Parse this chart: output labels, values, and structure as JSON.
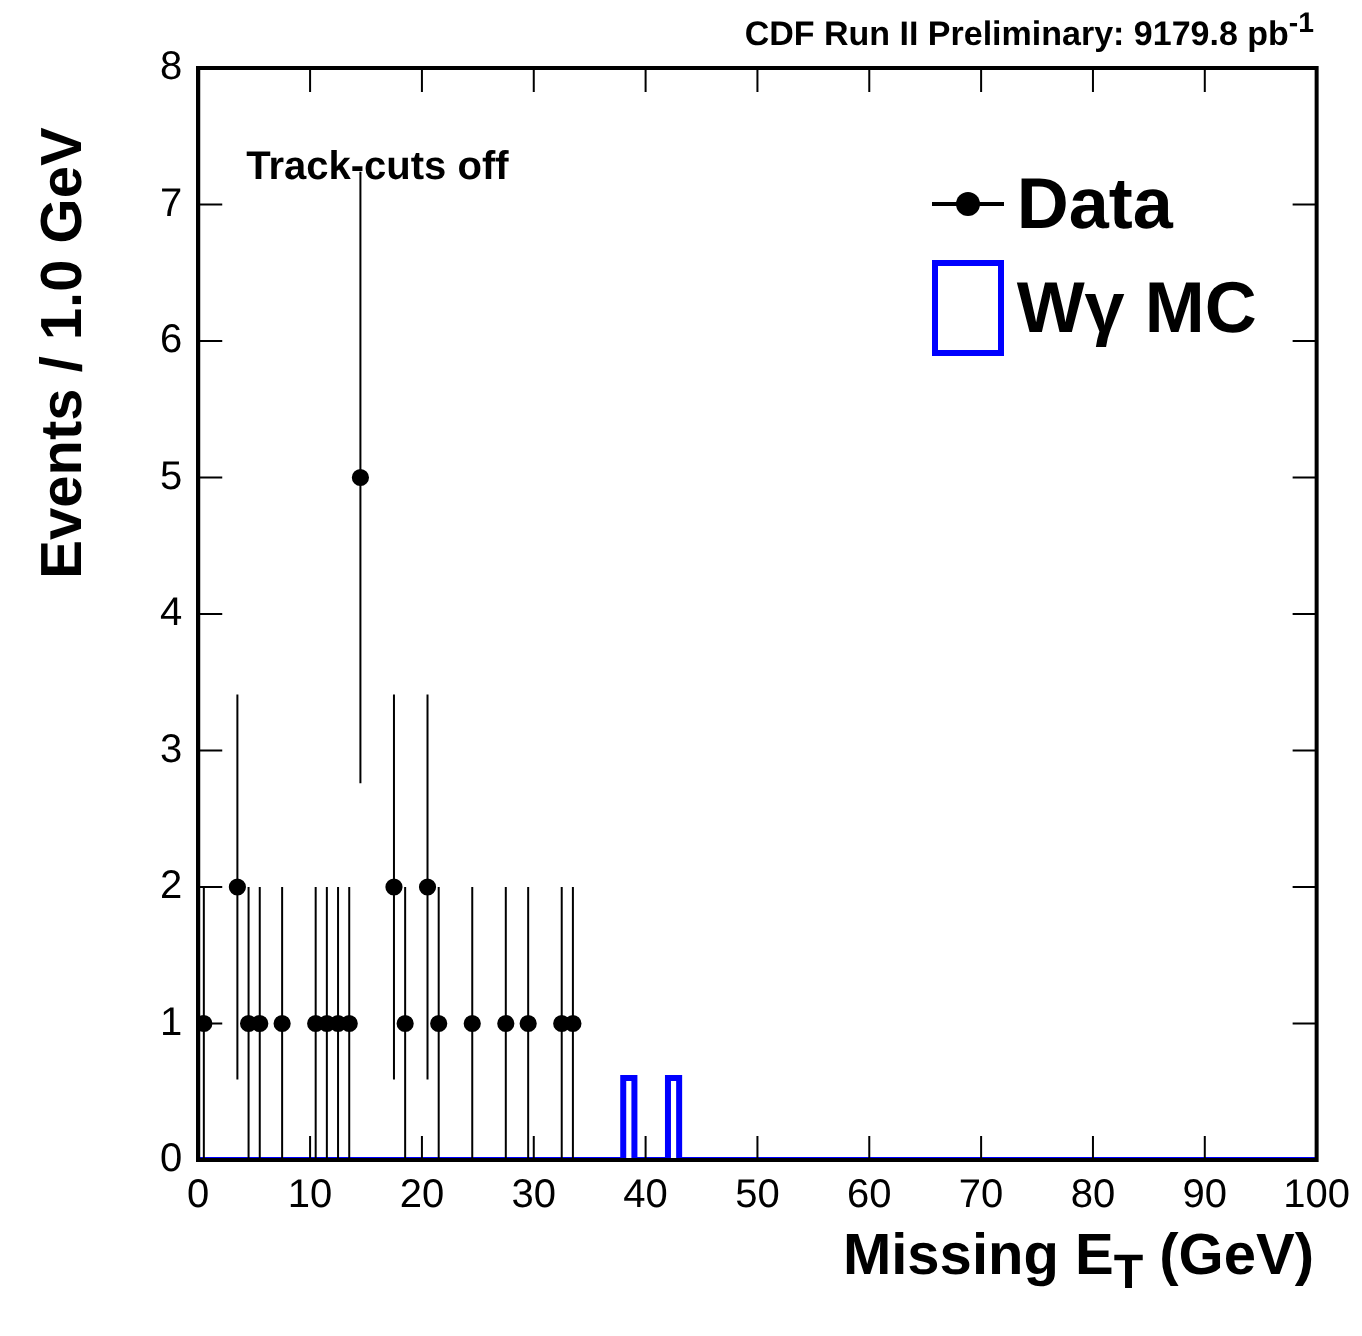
{
  "chart_data": {
    "type": "scatter",
    "title": "CDF Run II Preliminary:  9179.8 pb$^{-1}$",
    "xlabel": "Missing E$_{T}$ (GeV)",
    "ylabel": "Events / 1.0 GeV",
    "annotations": [
      "Track-cuts off"
    ],
    "series": [
      {
        "name": "Data",
        "color": "#000000",
        "x": [
          0.5,
          3.5,
          4.5,
          5.5,
          7.5,
          10.5,
          11.5,
          12.5,
          13.5,
          14.5,
          17.5,
          18.5,
          20.5,
          21.5,
          24.5,
          27.5,
          29.5,
          32.5,
          33.5
        ],
        "values": [
          1,
          2,
          1,
          1,
          1,
          1,
          1,
          1,
          1,
          5,
          2,
          1,
          2,
          1,
          1,
          1,
          1,
          1,
          1
        ],
        "errors": [
          1,
          1.41,
          1,
          1,
          1,
          1,
          1,
          1,
          1,
          2.24,
          1.41,
          1,
          1.41,
          1,
          1,
          1,
          1,
          1,
          1
        ]
      },
      {
        "type": "histogram",
        "name": "Wγ MC",
        "color": "#0000ff",
        "bins": [
          0,
          1,
          2,
          3,
          4,
          5,
          6,
          7,
          8,
          9,
          10,
          11,
          12,
          13,
          14,
          15,
          16,
          17,
          18,
          19,
          20,
          21,
          22,
          23,
          24,
          25,
          26,
          27,
          28,
          29,
          30,
          31,
          32,
          33,
          34,
          35,
          36,
          37,
          38,
          39,
          40,
          41,
          42,
          43,
          44,
          45,
          46,
          47,
          48,
          49,
          50,
          51,
          52,
          53,
          54,
          55,
          56,
          57,
          58,
          59,
          60,
          61,
          62,
          63,
          64,
          65,
          66,
          67,
          68,
          69,
          70,
          71,
          72,
          73,
          74,
          75,
          76,
          77,
          78,
          79,
          80,
          81,
          82,
          83,
          84,
          85,
          86,
          87,
          88,
          89,
          90,
          91,
          92,
          93,
          94,
          95,
          96,
          97,
          98,
          99,
          100
        ],
        "values": [
          0,
          0,
          0,
          0,
          0,
          0,
          0,
          0,
          0,
          0,
          0,
          0,
          0,
          0,
          0,
          0,
          0,
          0,
          0,
          0,
          0,
          0,
          0,
          0,
          0,
          0,
          0,
          0,
          0,
          0,
          0,
          0,
          0,
          0,
          0,
          0,
          0,
          0,
          0.6,
          0,
          0,
          0,
          0.6,
          0,
          0,
          0,
          0,
          0,
          0,
          0,
          0,
          0,
          0,
          0,
          0,
          0,
          0,
          0,
          0,
          0,
          0,
          0,
          0,
          0,
          0,
          0,
          0,
          0,
          0,
          0,
          0,
          0,
          0,
          0,
          0,
          0,
          0,
          0,
          0,
          0,
          0,
          0,
          0,
          0,
          0,
          0,
          0,
          0,
          0,
          0,
          0,
          0,
          0,
          0,
          0,
          0,
          0,
          0,
          0,
          0
        ]
      }
    ],
    "xlim": [
      0,
      100
    ],
    "xticks": [
      0,
      10,
      20,
      30,
      40,
      50,
      60,
      70,
      80,
      90,
      100
    ],
    "ylim": [
      0,
      8
    ],
    "yticks": [
      0,
      1,
      2,
      3,
      4,
      5,
      6,
      7,
      8
    ],
    "grid": false,
    "legend": "top right",
    "marker": "circle"
  }
}
